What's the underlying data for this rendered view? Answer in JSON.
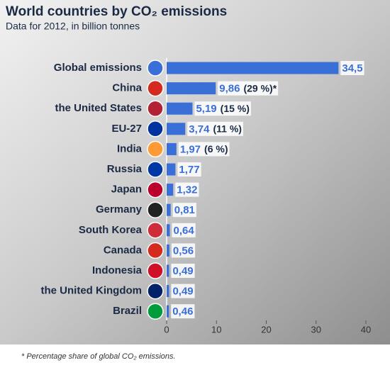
{
  "chart_data": {
    "type": "bar",
    "orientation": "horizontal",
    "title": "World countries by CO₂ emissions",
    "subtitle": "Data for 2012, in billion tonnes",
    "footnote": "* Percentage share of global CO₂ emissions.",
    "categories": [
      "Global emissions",
      "China",
      "the United States",
      "EU-27",
      "India",
      "Russia",
      "Japan",
      "Germany",
      "South Korea",
      "Canada",
      "Indonesia",
      "the United Kingdom",
      "Brazil"
    ],
    "values": [
      34.5,
      9.86,
      5.19,
      3.74,
      1.97,
      1.77,
      1.32,
      0.81,
      0.64,
      0.56,
      0.49,
      0.49,
      0.46
    ],
    "value_labels": [
      "34,5",
      "9,86",
      "5,19",
      "3,74",
      "1,97",
      "1,77",
      "1,32",
      "0,81",
      "0,64",
      "0,56",
      "0,49",
      "0,49",
      "0,46"
    ],
    "share_labels": [
      null,
      "(29 %)*",
      "(15 %)",
      "(11 %)",
      "(6 %)",
      null,
      null,
      null,
      null,
      null,
      null,
      null,
      null
    ],
    "color": "#3a6fd8",
    "xlim": [
      0,
      40
    ],
    "xticks": [
      0,
      10,
      20,
      30,
      40
    ],
    "grid": false
  }
}
